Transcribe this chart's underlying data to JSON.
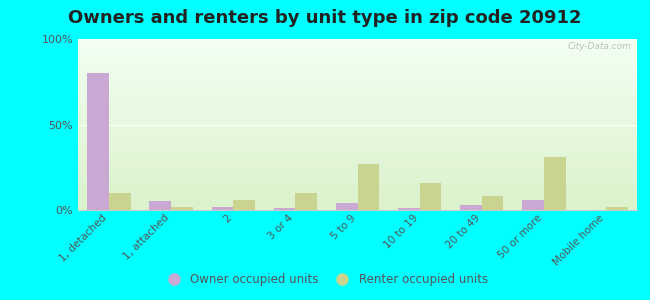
{
  "title": "Owners and renters by unit type in zip code 20912",
  "categories": [
    "1, detached",
    "1, attached",
    "2",
    "3 or 4",
    "5 to 9",
    "10 to 19",
    "20 to 49",
    "50 or more",
    "Mobile home"
  ],
  "owner_values": [
    80,
    5,
    2,
    1,
    4,
    1,
    3,
    6,
    0
  ],
  "renter_values": [
    10,
    2,
    6,
    10,
    27,
    16,
    8,
    31,
    2
  ],
  "owner_color": "#c9a8d4",
  "renter_color": "#c8d490",
  "outer_bg": "#00ffff",
  "ylabel_ticks": [
    "0%",
    "50%",
    "100%"
  ],
  "ytick_vals": [
    0,
    50,
    100
  ],
  "ylim": [
    0,
    100
  ],
  "bar_width": 0.35,
  "legend_owner": "Owner occupied units",
  "legend_renter": "Renter occupied units",
  "watermark": "City-Data.com",
  "title_fontsize": 13,
  "tick_fontsize": 7.5
}
